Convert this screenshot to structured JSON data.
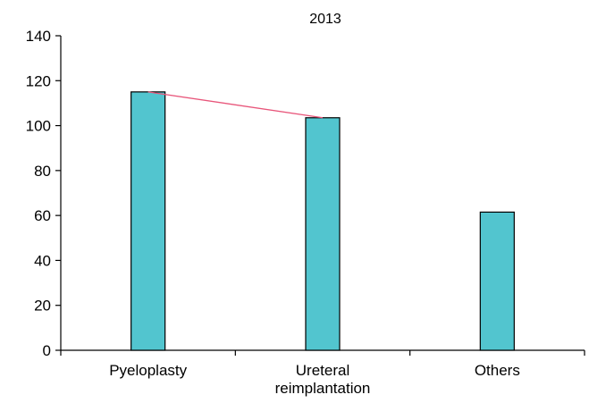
{
  "chart_data": {
    "type": "bar",
    "title": "2013",
    "xlabel": "",
    "ylabel": "",
    "categories": [
      [
        "Pyeloplasty"
      ],
      [
        "Ureteral",
        "reimplantation"
      ],
      [
        "Others"
      ]
    ],
    "values": [
      115,
      103.5,
      61.5
    ],
    "ylim": [
      0,
      140
    ],
    "yticks": [
      0,
      20,
      40,
      60,
      80,
      100,
      120,
      140
    ],
    "trend_line": {
      "from_category": 0,
      "to_category": 1,
      "color": "#e8557a"
    },
    "grid": false,
    "legend": "none",
    "bar_color": "#52c5cf",
    "bar_edge_color": "#000000"
  }
}
